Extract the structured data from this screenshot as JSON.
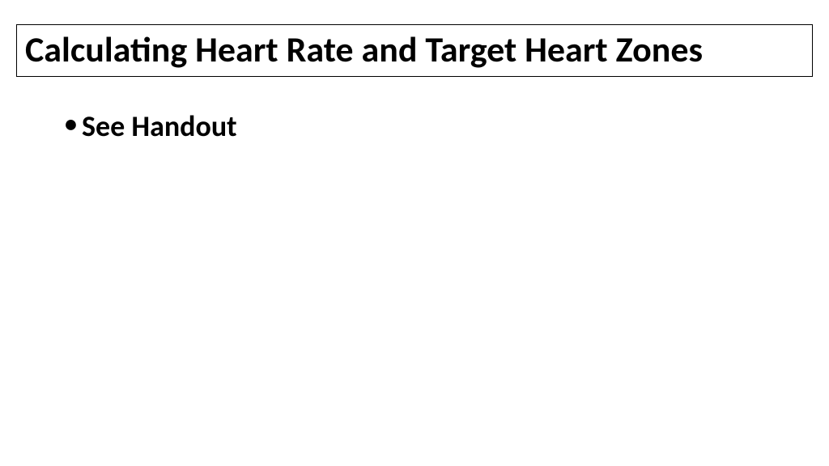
{
  "slide": {
    "title": "Calculating Heart Rate and Target Heart Zones",
    "bullets": [
      {
        "text": "See Handout"
      }
    ],
    "styling": {
      "background_color": "#ffffff",
      "title_fontsize": 44,
      "title_fontweight": "bold",
      "title_color": "#000000",
      "title_border_color": "#000000",
      "title_border_width": 1,
      "bullet_fontsize": 36,
      "bullet_fontweight": "bold",
      "bullet_color": "#000000",
      "bullet_marker": "•",
      "font_family": "Calibri"
    }
  }
}
